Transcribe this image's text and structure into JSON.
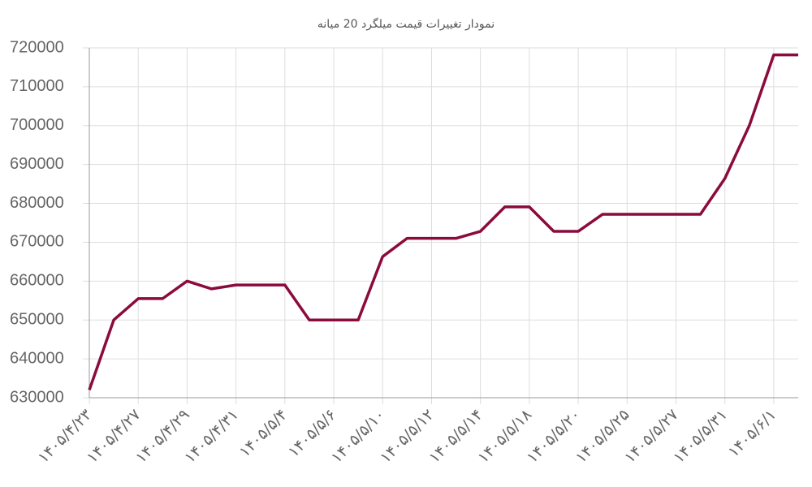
{
  "chart_data": {
    "type": "line",
    "title": "نمودار تغییرات قیمت میلگرد 20 میانه",
    "categories": [
      "۱۴۰۵/۴/۲۳",
      null,
      "۱۴۰۵/۴/۲۷",
      null,
      "۱۴۰۵/۴/۲۹",
      null,
      "۱۴۰۵/۴/۳۱",
      null,
      "۱۴۰۵/۵/۴",
      null,
      "۱۴۰۵/۵/۶",
      null,
      "۱۴۰۵/۵/۱۰",
      null,
      "۱۴۰۵/۵/۱۲",
      null,
      "۱۴۰۵/۵/۱۴",
      null,
      "۱۴۰۵/۵/۱۸",
      null,
      "۱۴۰۵/۵/۲۰",
      null,
      "۱۴۰۵/۵/۲۵",
      null,
      "۱۴۰۵/۵/۲۷",
      null,
      "۱۴۰۵/۵/۳۱",
      null,
      "۱۴۰۵/۶/۱",
      null
    ],
    "values": [
      632000,
      650000,
      655500,
      655500,
      660000,
      658000,
      659000,
      659000,
      659000,
      650000,
      650000,
      650000,
      666300,
      671000,
      671000,
      671000,
      672800,
      679100,
      679100,
      672800,
      672800,
      677200,
      677200,
      677200,
      677200,
      677200,
      686400,
      700000,
      718200,
      718200
    ],
    "color": "#8a0b3c",
    "ylim": [
      630000,
      720000
    ],
    "yticks": [
      630000,
      640000,
      650000,
      660000,
      670000,
      680000,
      690000,
      700000,
      710000,
      720000
    ],
    "grid": true
  }
}
